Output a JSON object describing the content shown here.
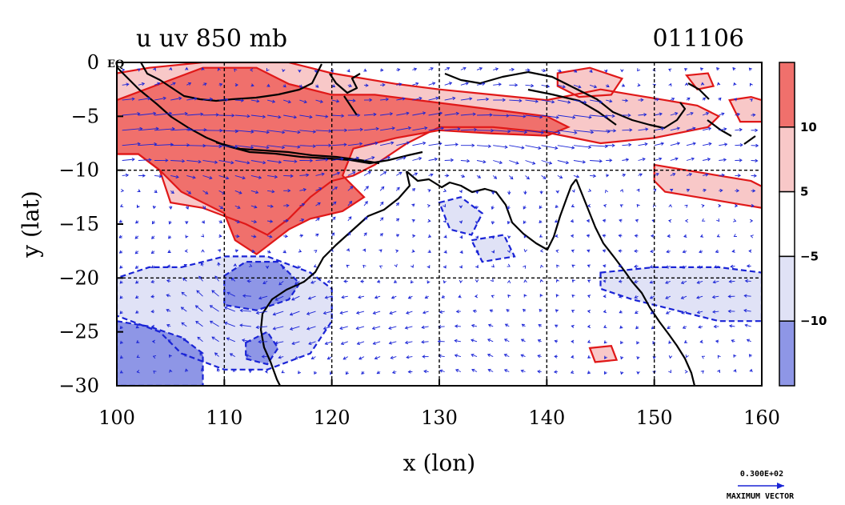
{
  "title": {
    "left": "u uv 850 mb",
    "right": "011106"
  },
  "chart_data": {
    "type": "map",
    "field": "u",
    "vectors": "uv",
    "level": "850 mb",
    "date": "011106",
    "xlabel": "x (lon)",
    "ylabel": "y (lat)",
    "xlim": [
      100,
      160
    ],
    "ylim": [
      -30,
      0
    ],
    "x_ticks": [
      "100",
      "110",
      "120",
      "130",
      "140",
      "150",
      "160"
    ],
    "y_ticks": [
      "0",
      "−5",
      "−10",
      "−15",
      "−20",
      "−25",
      "−30"
    ],
    "x_tick_values": [
      100,
      110,
      120,
      130,
      140,
      150,
      160
    ],
    "y_tick_values": [
      0,
      -5,
      -10,
      -15,
      -20,
      -25,
      -30
    ],
    "equator_label": "EQ",
    "grid": "dashed black at every 10 deg lon and 10 deg lat",
    "colorbar": {
      "labels": [
        "10",
        "5",
        "−5",
        "−10"
      ],
      "boundaries": [
        10,
        5,
        -5,
        -10
      ],
      "colors": [
        "#f0706c",
        "#f8c8c8",
        "#ffffff",
        "#e0e2f6",
        "#8e96e6"
      ]
    },
    "shaded_regions": [
      {
        "level": "5 to 10",
        "color": "#f8c8c8",
        "poly": [
          [
            100,
            -1
          ],
          [
            103,
            -0.5
          ],
          [
            108,
            0
          ],
          [
            116,
            0
          ],
          [
            120,
            -1
          ],
          [
            126,
            -2
          ],
          [
            130,
            -2.5
          ],
          [
            135,
            -3
          ],
          [
            140,
            -3.5
          ],
          [
            145,
            -2.5
          ],
          [
            148,
            -3
          ],
          [
            151,
            -3.5
          ],
          [
            154,
            -4
          ],
          [
            156,
            -5
          ],
          [
            155,
            -6
          ],
          [
            150,
            -7
          ],
          [
            145,
            -7.5
          ],
          [
            140,
            -6.5
          ],
          [
            135,
            -6
          ],
          [
            130,
            -6
          ],
          [
            127,
            -7.5
          ],
          [
            124,
            -9.5
          ],
          [
            122,
            -10.5
          ],
          [
            120,
            -11
          ],
          [
            118,
            -12.5
          ],
          [
            116,
            -14.5
          ],
          [
            114,
            -16
          ],
          [
            112,
            -15
          ],
          [
            108,
            -13.5
          ],
          [
            105,
            -13
          ],
          [
            104,
            -10
          ],
          [
            102,
            -8.5
          ],
          [
            100,
            -8.5
          ]
        ]
      },
      {
        "level": ">10",
        "color": "#f0706c",
        "poly": [
          [
            100,
            -3.5
          ],
          [
            104,
            -2
          ],
          [
            108,
            -0.5
          ],
          [
            113,
            -0.5
          ],
          [
            116,
            -2
          ],
          [
            120,
            -3
          ],
          [
            124,
            -3
          ],
          [
            128,
            -3.5
          ],
          [
            132,
            -4
          ],
          [
            136,
            -4.5
          ],
          [
            140,
            -5
          ],
          [
            142,
            -6
          ],
          [
            140,
            -6.8
          ],
          [
            135,
            -6.6
          ],
          [
            130,
            -6.3
          ],
          [
            126,
            -7
          ],
          [
            122,
            -8
          ],
          [
            121,
            -10.5
          ],
          [
            123,
            -12.5
          ],
          [
            121,
            -13.8
          ],
          [
            118,
            -14.5
          ],
          [
            116,
            -15.5
          ],
          [
            113,
            -17.8
          ],
          [
            111,
            -16.5
          ],
          [
            110,
            -14
          ],
          [
            106,
            -12
          ],
          [
            104,
            -10
          ],
          [
            102,
            -8.5
          ],
          [
            100,
            -8.5
          ]
        ]
      },
      {
        "level": "5 to 10",
        "color": "#f8c8c8",
        "poly": [
          [
            150,
            -9.5
          ],
          [
            153,
            -10
          ],
          [
            156,
            -10.5
          ],
          [
            159,
            -11
          ],
          [
            160,
            -11.5
          ],
          [
            160,
            -13.5
          ],
          [
            157,
            -13
          ],
          [
            154,
            -12.5
          ],
          [
            151,
            -12
          ],
          [
            150,
            -11
          ]
        ]
      },
      {
        "level": "5 to 10",
        "color": "#f8c8c8",
        "poly": [
          [
            141,
            -1
          ],
          [
            144,
            -0.5
          ],
          [
            147,
            -1.5
          ],
          [
            146,
            -3
          ],
          [
            143,
            -3.2
          ],
          [
            141,
            -2.2
          ]
        ]
      },
      {
        "level": "5 to 10",
        "color": "#f8c8c8",
        "poly": [
          [
            153,
            -1.2
          ],
          [
            155,
            -1
          ],
          [
            155.5,
            -2.2
          ],
          [
            154,
            -2.5
          ]
        ]
      },
      {
        "level": "5 to 10",
        "color": "#f8c8c8",
        "poly": [
          [
            157,
            -3.5
          ],
          [
            159,
            -3.2
          ],
          [
            160,
            -3.5
          ],
          [
            160,
            -5.5
          ],
          [
            158,
            -5.5
          ]
        ]
      },
      {
        "level": "5 to 10",
        "color": "#f8c8c8",
        "poly": [
          [
            144,
            -26.5
          ],
          [
            146,
            -26.3
          ],
          [
            146.5,
            -27.6
          ],
          [
            144.5,
            -27.8
          ]
        ]
      },
      {
        "level": "-10 to -5",
        "color": "#e0e2f6",
        "poly": [
          [
            106,
            -19
          ],
          [
            110,
            -18
          ],
          [
            114,
            -18
          ],
          [
            118,
            -19.5
          ],
          [
            120,
            -21
          ],
          [
            120,
            -24
          ],
          [
            118,
            -27
          ],
          [
            114,
            -28.5
          ],
          [
            110,
            -28.5
          ],
          [
            106,
            -27
          ],
          [
            104,
            -25
          ],
          [
            100,
            -23.5
          ],
          [
            100,
            -20
          ],
          [
            103,
            -19
          ]
        ]
      },
      {
        "level": "< -10",
        "color": "#8e96e6",
        "poly": [
          [
            110,
            -19.8
          ],
          [
            112,
            -18.5
          ],
          [
            115,
            -18.5
          ],
          [
            117,
            -20.5
          ],
          [
            116,
            -22
          ],
          [
            113,
            -23
          ],
          [
            110,
            -22.5
          ]
        ]
      },
      {
        "level": "< -10",
        "color": "#8e96e6",
        "poly": [
          [
            100,
            -24
          ],
          [
            103,
            -24.5
          ],
          [
            106,
            -25.5
          ],
          [
            108,
            -27
          ],
          [
            108,
            -30
          ],
          [
            100,
            -30
          ]
        ]
      },
      {
        "level": "< -10",
        "color": "#8e96e6",
        "poly": [
          [
            112,
            -26
          ],
          [
            114,
            -25
          ],
          [
            115,
            -26.5
          ],
          [
            114,
            -28
          ],
          [
            112,
            -27.5
          ]
        ]
      },
      {
        "level": "-10 to -5",
        "color": "#e0e2f6",
        "poly": [
          [
            130,
            -13
          ],
          [
            132,
            -12.5
          ],
          [
            134,
            -14
          ],
          [
            133,
            -16
          ],
          [
            131,
            -15.5
          ]
        ]
      },
      {
        "level": "-10 to -5",
        "color": "#e0e2f6",
        "poly": [
          [
            133,
            -16.5
          ],
          [
            136,
            -16
          ],
          [
            137,
            -18
          ],
          [
            134,
            -18.5
          ]
        ]
      },
      {
        "level": "-10 to -5",
        "color": "#e0e2f6",
        "poly": [
          [
            145,
            -19.5
          ],
          [
            150,
            -19
          ],
          [
            156,
            -19
          ],
          [
            160,
            -19.5
          ],
          [
            160,
            -24
          ],
          [
            156,
            -24
          ],
          [
            152,
            -23
          ],
          [
            148,
            -22
          ],
          [
            145,
            -21
          ]
        ]
      }
    ]
  },
  "reference_vector": {
    "value": "0.300E+02",
    "label": "MAXIMUM VECTOR"
  }
}
